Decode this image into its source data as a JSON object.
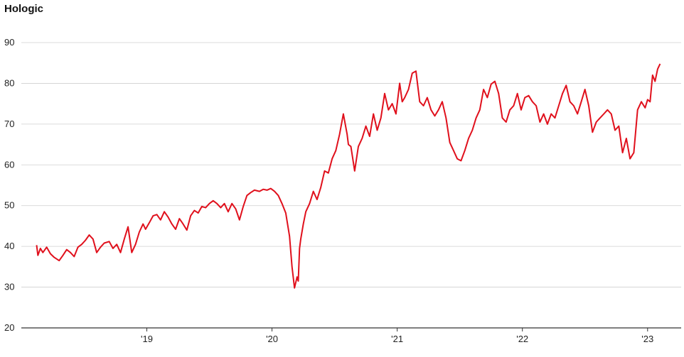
{
  "chart_data": {
    "type": "line",
    "title": "Hologic",
    "xlabel": "",
    "ylabel": "",
    "ylim": [
      20,
      90
    ],
    "y_ticks": [
      20,
      30,
      40,
      50,
      60,
      70,
      80,
      90
    ],
    "x_ticks": [
      {
        "label": "'19",
        "x": 2019.0
      },
      {
        "label": "'20",
        "x": 2020.0
      },
      {
        "label": "'21",
        "x": 2021.0
      },
      {
        "label": "'22",
        "x": 2022.0
      },
      {
        "label": "'23",
        "x": 2023.0
      }
    ],
    "xlim": [
      2018.1,
      2023.2
    ],
    "grid": true,
    "line_color": "#e0101c",
    "series": [
      {
        "x": [
          2018.12,
          2018.13,
          2018.15,
          2018.17,
          2018.2,
          2018.23,
          2018.26,
          2018.3,
          2018.33,
          2018.36,
          2018.39,
          2018.42,
          2018.45,
          2018.48,
          2018.51,
          2018.54,
          2018.57,
          2018.6,
          2018.63,
          2018.66,
          2018.7,
          2018.73,
          2018.76,
          2018.79,
          2018.82,
          2018.85,
          2018.88,
          2018.91,
          2018.94,
          2018.97,
          2018.99,
          2019.02,
          2019.05,
          2019.08,
          2019.11,
          2019.14,
          2019.17,
          2019.2,
          2019.23,
          2019.26,
          2019.29,
          2019.32,
          2019.35,
          2019.38,
          2019.41,
          2019.44,
          2019.47,
          2019.5,
          2019.53,
          2019.56,
          2019.59,
          2019.62,
          2019.65,
          2019.68,
          2019.71,
          2019.74,
          2019.77,
          2019.8,
          2019.83,
          2019.86,
          2019.9,
          2019.93,
          2019.96,
          2019.99,
          2020.02,
          2020.05,
          2020.08,
          2020.11,
          2020.14,
          2020.16,
          2020.18,
          2020.2,
          2020.21,
          2020.22,
          2020.23,
          2020.25,
          2020.27,
          2020.3,
          2020.33,
          2020.36,
          2020.39,
          2020.42,
          2020.45,
          2020.48,
          2020.51,
          2020.54,
          2020.57,
          2020.6,
          2020.61,
          2020.63,
          2020.66,
          2020.69,
          2020.72,
          2020.75,
          2020.78,
          2020.81,
          2020.84,
          2020.87,
          2020.9,
          2020.93,
          2020.96,
          2020.99,
          2021.02,
          2021.04,
          2021.06,
          2021.09,
          2021.12,
          2021.15,
          2021.18,
          2021.21,
          2021.24,
          2021.27,
          2021.3,
          2021.33,
          2021.36,
          2021.39,
          2021.42,
          2021.45,
          2021.48,
          2021.51,
          2021.54,
          2021.57,
          2021.6,
          2021.63,
          2021.66,
          2021.69,
          2021.72,
          2021.75,
          2021.78,
          2021.81,
          2021.84,
          2021.87,
          2021.9,
          2021.93,
          2021.96,
          2021.99,
          2022.02,
          2022.05,
          2022.08,
          2022.11,
          2022.14,
          2022.17,
          2022.2,
          2022.23,
          2022.26,
          2022.29,
          2022.32,
          2022.35,
          2022.38,
          2022.41,
          2022.44,
          2022.47,
          2022.5,
          2022.53,
          2022.56,
          2022.59,
          2022.62,
          2022.65,
          2022.68,
          2022.71,
          2022.74,
          2022.77,
          2022.8,
          2022.83,
          2022.86,
          2022.89,
          2022.92,
          2022.95,
          2022.98,
          2023.0,
          2023.02,
          2023.04,
          2023.06,
          2023.08,
          2023.1
        ],
        "y": [
          40.3,
          37.8,
          39.5,
          38.5,
          39.8,
          38.2,
          37.3,
          36.5,
          37.8,
          39.2,
          38.5,
          37.5,
          39.8,
          40.5,
          41.5,
          42.8,
          41.8,
          38.5,
          39.8,
          40.8,
          41.2,
          39.5,
          40.5,
          38.5,
          41.8,
          44.8,
          38.5,
          40.5,
          43.5,
          45.5,
          44.2,
          45.8,
          47.5,
          47.8,
          46.5,
          48.5,
          47.2,
          45.5,
          44.2,
          46.8,
          45.5,
          44.0,
          47.5,
          48.8,
          48.2,
          49.8,
          49.5,
          50.5,
          51.2,
          50.5,
          49.5,
          50.5,
          48.5,
          50.5,
          49.2,
          46.5,
          49.8,
          52.5,
          53.2,
          53.8,
          53.5,
          54.0,
          53.8,
          54.2,
          53.5,
          52.5,
          50.5,
          48.2,
          42.5,
          35.0,
          29.8,
          32.5,
          31.5,
          39.5,
          41.8,
          45.5,
          48.5,
          50.5,
          53.5,
          51.5,
          54.5,
          58.5,
          58.0,
          61.5,
          63.5,
          67.5,
          72.5,
          67.5,
          65.0,
          64.5,
          58.5,
          64.5,
          66.5,
          69.5,
          67.0,
          72.5,
          68.5,
          71.5,
          77.5,
          73.5,
          75.0,
          72.5,
          80.0,
          75.5,
          76.5,
          78.5,
          82.5,
          83.0,
          75.5,
          74.5,
          76.5,
          73.5,
          72.0,
          73.5,
          75.5,
          71.5,
          65.5,
          63.5,
          61.5,
          61.0,
          63.5,
          66.5,
          68.5,
          71.5,
          73.5,
          78.5,
          76.5,
          79.8,
          80.5,
          77.5,
          71.5,
          70.5,
          73.5,
          74.5,
          77.5,
          73.5,
          76.5,
          77.0,
          75.5,
          74.5,
          70.5,
          72.5,
          70.0,
          72.5,
          71.5,
          74.5,
          77.5,
          79.5,
          75.5,
          74.5,
          72.5,
          75.5,
          78.5,
          74.5,
          68.0,
          70.5,
          71.5,
          72.5,
          73.5,
          72.5,
          68.5,
          69.5,
          63.0,
          66.5,
          61.5,
          63.0,
          73.5,
          75.5,
          74.0,
          76.0,
          75.5,
          82.0,
          80.5,
          83.5,
          84.8
        ]
      }
    ]
  }
}
